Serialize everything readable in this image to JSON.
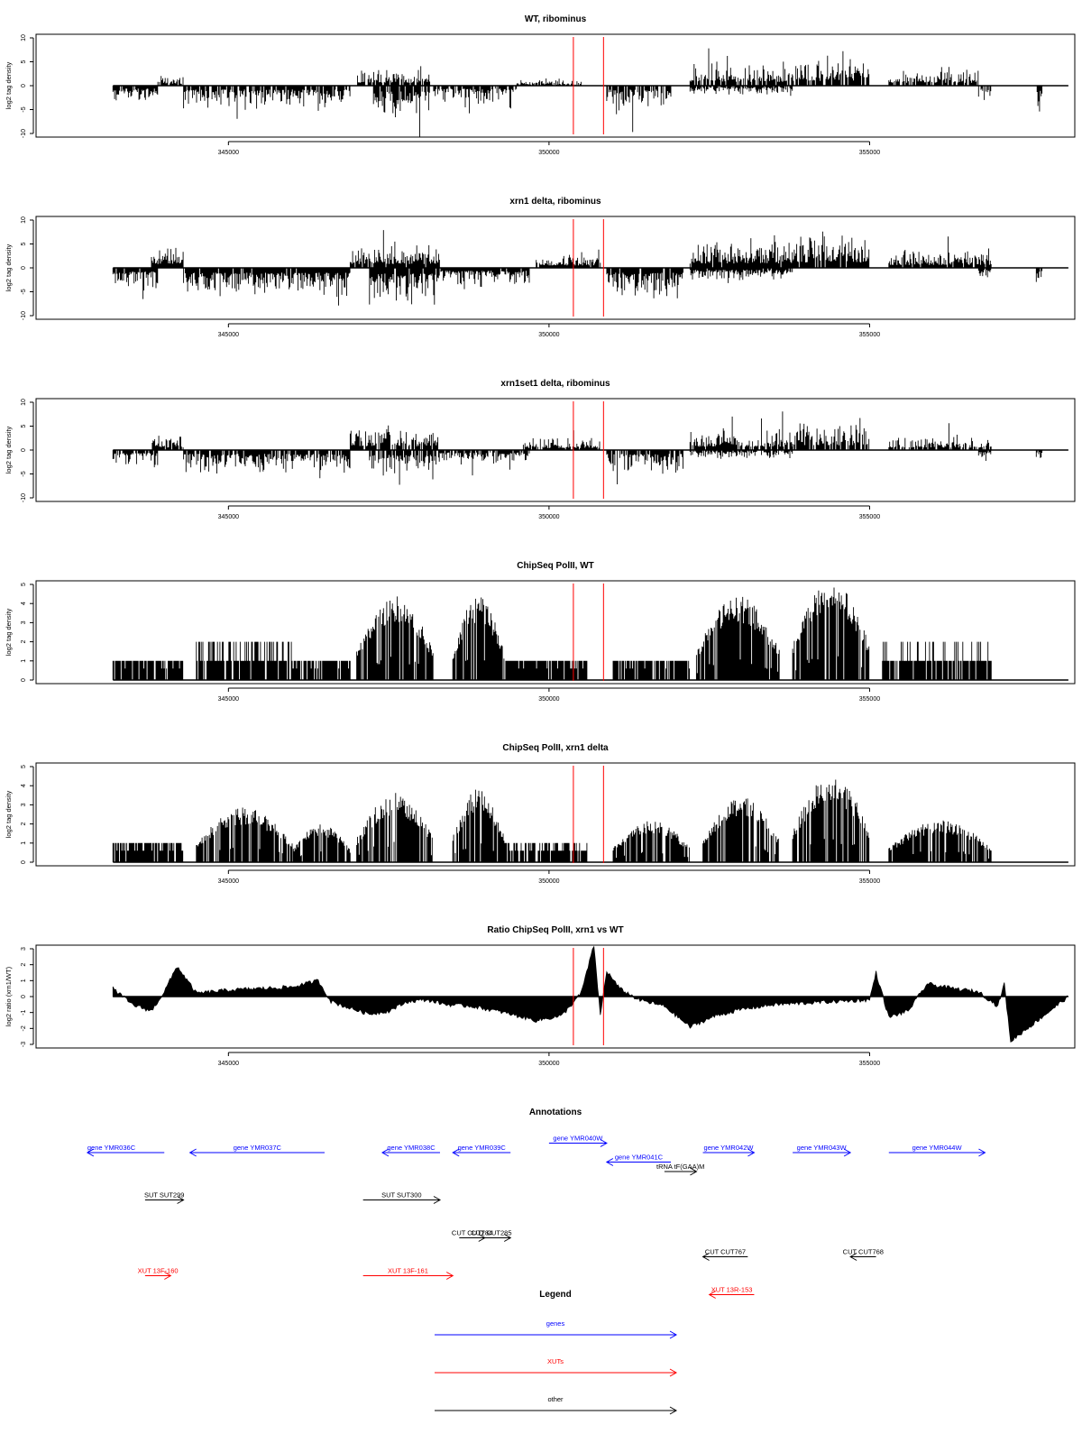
{
  "chart_data": [
    {
      "type": "bar",
      "title": "WT, ribominus",
      "xlabel": "",
      "ylabel": "log2 tag density",
      "ylim": [
        -10,
        10
      ],
      "yticks": [
        "10",
        "5",
        "0",
        "-5",
        "-10"
      ],
      "xticks": [
        "345000",
        "350000",
        "355000"
      ],
      "markers": [
        350380,
        350850
      ],
      "density": 0.82,
      "segments": [
        {
          "x": [
            343200,
            343900
          ],
          "sign": -1,
          "amp": 3
        },
        {
          "x": [
            343900,
            344300
          ],
          "sign": 1,
          "amp": 2
        },
        {
          "x": [
            344300,
            346900
          ],
          "sign": -1,
          "amp": 4
        },
        {
          "x": [
            347000,
            348150
          ],
          "sign": 1,
          "amp": 3
        },
        {
          "x": [
            347250,
            348150
          ],
          "sign": -1,
          "amp": 6
        },
        {
          "x": [
            348200,
            349500
          ],
          "sign": -1,
          "amp": 3
        },
        {
          "x": [
            349500,
            350500
          ],
          "sign": 1,
          "amp": 1
        },
        {
          "x": [
            350900,
            351900
          ],
          "sign": -1,
          "amp": 4
        },
        {
          "x": [
            352200,
            353800
          ],
          "sign": 1,
          "amp": 4
        },
        {
          "x": [
            352200,
            353800
          ],
          "sign": -1,
          "amp": 1.5
        },
        {
          "x": [
            353800,
            355000
          ],
          "sign": 1,
          "amp": 5
        },
        {
          "x": [
            355300,
            356700
          ],
          "sign": 1,
          "amp": 3
        },
        {
          "x": [
            356700,
            356900
          ],
          "sign": -1,
          "amp": 3
        },
        {
          "x": [
            357600,
            357700
          ],
          "sign": -1,
          "amp": 5
        }
      ]
    },
    {
      "type": "bar",
      "title": "xrn1 delta, ribominus",
      "xlabel": "",
      "ylabel": "log2 tag density",
      "ylim": [
        -10,
        10
      ],
      "yticks": [
        "10",
        "5",
        "0",
        "-5",
        "-10"
      ],
      "xticks": [
        "345000",
        "350000",
        "355000"
      ],
      "markers": [
        350380,
        350850
      ],
      "density": 0.95,
      "segments": [
        {
          "x": [
            343200,
            343900
          ],
          "sign": -1,
          "amp": 4
        },
        {
          "x": [
            343800,
            344300
          ],
          "sign": 1,
          "amp": 4
        },
        {
          "x": [
            344300,
            346900
          ],
          "sign": -1,
          "amp": 5
        },
        {
          "x": [
            346900,
            348300
          ],
          "sign": 1,
          "amp": 4
        },
        {
          "x": [
            347200,
            348300
          ],
          "sign": -1,
          "amp": 6
        },
        {
          "x": [
            348300,
            349700
          ],
          "sign": -1,
          "amp": 3
        },
        {
          "x": [
            349800,
            350800
          ],
          "sign": 1,
          "amp": 2.5
        },
        {
          "x": [
            350900,
            352100
          ],
          "sign": -1,
          "amp": 5
        },
        {
          "x": [
            352200,
            353800
          ],
          "sign": 1,
          "amp": 4.5
        },
        {
          "x": [
            352200,
            353800
          ],
          "sign": -1,
          "amp": 2
        },
        {
          "x": [
            353800,
            355000
          ],
          "sign": 1,
          "amp": 5.5
        },
        {
          "x": [
            355300,
            356900
          ],
          "sign": 1,
          "amp": 3
        },
        {
          "x": [
            356700,
            356900
          ],
          "sign": -1,
          "amp": 2
        },
        {
          "x": [
            357600,
            357700
          ],
          "sign": -1,
          "amp": 3
        }
      ]
    },
    {
      "type": "bar",
      "title": "xrn1set1 delta, ribominus",
      "xlabel": "",
      "ylabel": "log2 tag density",
      "ylim": [
        -10,
        10
      ],
      "yticks": [
        "10",
        "5",
        "0",
        "-5",
        "-10"
      ],
      "xticks": [
        "345000",
        "350000",
        "355000"
      ],
      "markers": [
        350380,
        350850
      ],
      "density": 0.8,
      "segments": [
        {
          "x": [
            343200,
            343900
          ],
          "sign": -1,
          "amp": 3
        },
        {
          "x": [
            343800,
            344300
          ],
          "sign": 1,
          "amp": 2.5
        },
        {
          "x": [
            344300,
            346900
          ],
          "sign": -1,
          "amp": 4
        },
        {
          "x": [
            346900,
            348300
          ],
          "sign": 1,
          "amp": 4
        },
        {
          "x": [
            347200,
            348300
          ],
          "sign": -1,
          "amp": 5
        },
        {
          "x": [
            348300,
            349700
          ],
          "sign": -1,
          "amp": 2.5
        },
        {
          "x": [
            349600,
            350800
          ],
          "sign": 1,
          "amp": 2
        },
        {
          "x": [
            350900,
            352100
          ],
          "sign": -1,
          "amp": 4
        },
        {
          "x": [
            352200,
            353800
          ],
          "sign": 1,
          "amp": 3.5
        },
        {
          "x": [
            352200,
            353800
          ],
          "sign": -1,
          "amp": 1.5
        },
        {
          "x": [
            353800,
            355000
          ],
          "sign": 1,
          "amp": 5
        },
        {
          "x": [
            355300,
            356900
          ],
          "sign": 1,
          "amp": 2.5
        },
        {
          "x": [
            356700,
            356900
          ],
          "sign": -1,
          "amp": 2
        },
        {
          "x": [
            357600,
            357700
          ],
          "sign": -1,
          "amp": 2
        }
      ]
    },
    {
      "type": "bar",
      "title": "ChipSeq PolII, WT",
      "xlabel": "",
      "ylabel": "log2 tag density",
      "ylim": [
        0,
        5
      ],
      "yticks": [
        "5",
        "4",
        "3",
        "2",
        "1",
        "0"
      ],
      "xticks": [
        "345000",
        "350000",
        "355000"
      ],
      "markers": [
        350380,
        350850
      ],
      "density": 0.9,
      "segments": [
        {
          "x": [
            343200,
            344300
          ],
          "shape": "flat",
          "amp": 1
        },
        {
          "x": [
            344500,
            346000
          ],
          "shape": "flat",
          "amp": 2
        },
        {
          "x": [
            346000,
            346900
          ],
          "shape": "flat",
          "amp": 1
        },
        {
          "x": [
            347000,
            348200
          ],
          "shape": "hump",
          "amp": 4
        },
        {
          "x": [
            348500,
            349300
          ],
          "shape": "hump",
          "amp": 4
        },
        {
          "x": [
            349300,
            350600
          ],
          "shape": "flat",
          "amp": 1
        },
        {
          "x": [
            351000,
            352200
          ],
          "shape": "flat",
          "amp": 1
        },
        {
          "x": [
            352300,
            353600
          ],
          "shape": "hump",
          "amp": 4
        },
        {
          "x": [
            353800,
            355000
          ],
          "shape": "hump",
          "amp": 4.8
        },
        {
          "x": [
            355200,
            356900
          ],
          "shape": "flat",
          "amp": 1.5
        }
      ]
    },
    {
      "type": "bar",
      "title": "ChipSeq PolII, xrn1 delta",
      "xlabel": "",
      "ylabel": "log2 tag density",
      "ylim": [
        0,
        5
      ],
      "yticks": [
        "5",
        "4",
        "3",
        "2",
        "1",
        "0"
      ],
      "xticks": [
        "345000",
        "350000",
        "355000"
      ],
      "markers": [
        350380,
        350850
      ],
      "density": 0.85,
      "segments": [
        {
          "x": [
            343200,
            344300
          ],
          "shape": "flat",
          "amp": 0.8
        },
        {
          "x": [
            344500,
            346000
          ],
          "shape": "hump",
          "amp": 2.6
        },
        {
          "x": [
            346000,
            346900
          ],
          "shape": "hump",
          "amp": 1.8
        },
        {
          "x": [
            347000,
            348200
          ],
          "shape": "hump",
          "amp": 3.3
        },
        {
          "x": [
            348500,
            349300
          ],
          "shape": "hump",
          "amp": 3.5
        },
        {
          "x": [
            349300,
            350600
          ],
          "shape": "flat",
          "amp": 0.7
        },
        {
          "x": [
            351000,
            352200
          ],
          "shape": "hump",
          "amp": 2
        },
        {
          "x": [
            352400,
            353600
          ],
          "shape": "hump",
          "amp": 3.2
        },
        {
          "x": [
            353800,
            355000
          ],
          "shape": "hump",
          "amp": 4.2
        },
        {
          "x": [
            355300,
            356900
          ],
          "shape": "hump",
          "amp": 2
        }
      ]
    },
    {
      "type": "area",
      "title": "Ratio ChipSeq PolII, xrn1 vs WT",
      "xlabel": "",
      "ylabel": "log2 ratio (xrn1/WT)",
      "ylim": [
        -3,
        3
      ],
      "yticks": [
        "3",
        "2",
        "1",
        "0",
        "-1",
        "-2",
        "-3"
      ],
      "xticks": [
        "345000",
        "350000",
        "355000"
      ],
      "markers": [
        350380,
        350850
      ],
      "x": [
        343200,
        343500,
        343800,
        344000,
        344200,
        344500,
        345000,
        345500,
        346000,
        346400,
        346600,
        346800,
        347200,
        347500,
        347800,
        348100,
        348400,
        348800,
        349300,
        349800,
        350200,
        350500,
        350700,
        350800,
        350900,
        351100,
        351400,
        351800,
        352200,
        352600,
        353000,
        353500,
        354000,
        354500,
        355000,
        355100,
        355300,
        355600,
        355900,
        356300,
        356700,
        357000,
        357100,
        357200,
        358100
      ],
      "y": [
        0.5,
        -0.5,
        -0.9,
        0.3,
        1.9,
        0.2,
        0.4,
        0.5,
        0.6,
        1.0,
        -0.3,
        -0.6,
        -1.1,
        -0.9,
        -0.3,
        -0.2,
        -0.5,
        -0.6,
        -1.0,
        -1.5,
        -1.2,
        0.2,
        3.2,
        -1.2,
        1.6,
        0.5,
        -0.2,
        -0.6,
        -1.9,
        -1.2,
        -0.8,
        -0.5,
        -0.4,
        -0.3,
        -0.2,
        1.5,
        -1.3,
        -0.9,
        0.8,
        0.5,
        0.3,
        -0.6,
        0.8,
        -2.8,
        0
      ]
    }
  ],
  "annotations": {
    "title": "Annotations",
    "items": [
      {
        "label": "gene YMR036C",
        "color": "#0000ff",
        "x1": 342800,
        "x2": 344000,
        "dir": "left",
        "row": 0,
        "clip": true
      },
      {
        "label": "gene YMR037C",
        "color": "#0000ff",
        "x1": 344400,
        "x2": 346500,
        "dir": "left",
        "row": 0
      },
      {
        "label": "gene YMR038C",
        "color": "#0000ff",
        "x1": 347400,
        "x2": 348300,
        "dir": "left",
        "row": 0
      },
      {
        "label": "gene YMR039C",
        "color": "#0000ff",
        "x1": 348500,
        "x2": 349400,
        "dir": "left",
        "row": 0
      },
      {
        "label": "gene YMR040W",
        "color": "#0000ff",
        "x1": 350000,
        "x2": 350900,
        "dir": "right",
        "row": -0.5
      },
      {
        "label": "gene YMR041C",
        "color": "#0000ff",
        "x1": 350900,
        "x2": 351900,
        "dir": "left",
        "row": 0.5
      },
      {
        "label": "gene YMR042W",
        "color": "#0000ff",
        "x1": 352400,
        "x2": 353200,
        "dir": "right",
        "row": 0
      },
      {
        "label": "gene YMR043W",
        "color": "#0000ff",
        "x1": 353800,
        "x2": 354700,
        "dir": "right",
        "row": 0
      },
      {
        "label": "gene YMR044W",
        "color": "#0000ff",
        "x1": 355300,
        "x2": 356800,
        "dir": "right",
        "row": 0
      },
      {
        "label": "tRNA tF(GAA)M",
        "color": "#000000",
        "x1": 351800,
        "x2": 352300,
        "dir": "right",
        "row": 1
      },
      {
        "label": "SUT SUT299",
        "color": "#000000",
        "x1": 343700,
        "x2": 344300,
        "dir": "right",
        "row": 2.5
      },
      {
        "label": "SUT SUT300",
        "color": "#000000",
        "x1": 347100,
        "x2": 348300,
        "dir": "right",
        "row": 2.5
      },
      {
        "label": "CUT CUT284",
        "color": "#000000",
        "x1": 348600,
        "x2": 349000,
        "dir": "right",
        "row": 4.5
      },
      {
        "label": "CUT CUT285",
        "color": "#000000",
        "x1": 348800,
        "x2": 349400,
        "dir": "right",
        "row": 4.5
      },
      {
        "label": "CUT CUT767",
        "color": "#000000",
        "x1": 352400,
        "x2": 353100,
        "dir": "left",
        "row": 5.5
      },
      {
        "label": "CUT CUT768",
        "color": "#000000",
        "x1": 354700,
        "x2": 355100,
        "dir": "left",
        "row": 5.5
      },
      {
        "label": "XUT 13F-160",
        "color": "#ff0000",
        "x1": 343700,
        "x2": 344100,
        "dir": "right",
        "row": 6.5
      },
      {
        "label": "XUT 13F-161",
        "color": "#ff0000",
        "x1": 347100,
        "x2": 348500,
        "dir": "right",
        "row": 6.5
      },
      {
        "label": "XUT 13R-153",
        "color": "#ff0000",
        "x1": 352500,
        "x2": 353200,
        "dir": "left",
        "row": 7.5
      }
    ]
  },
  "legend": {
    "title": "Legend",
    "entries": [
      {
        "label": "genes",
        "color": "#0000ff"
      },
      {
        "label": "XUTs",
        "color": "#ff0000"
      },
      {
        "label": "other",
        "color": "#000000"
      }
    ]
  }
}
